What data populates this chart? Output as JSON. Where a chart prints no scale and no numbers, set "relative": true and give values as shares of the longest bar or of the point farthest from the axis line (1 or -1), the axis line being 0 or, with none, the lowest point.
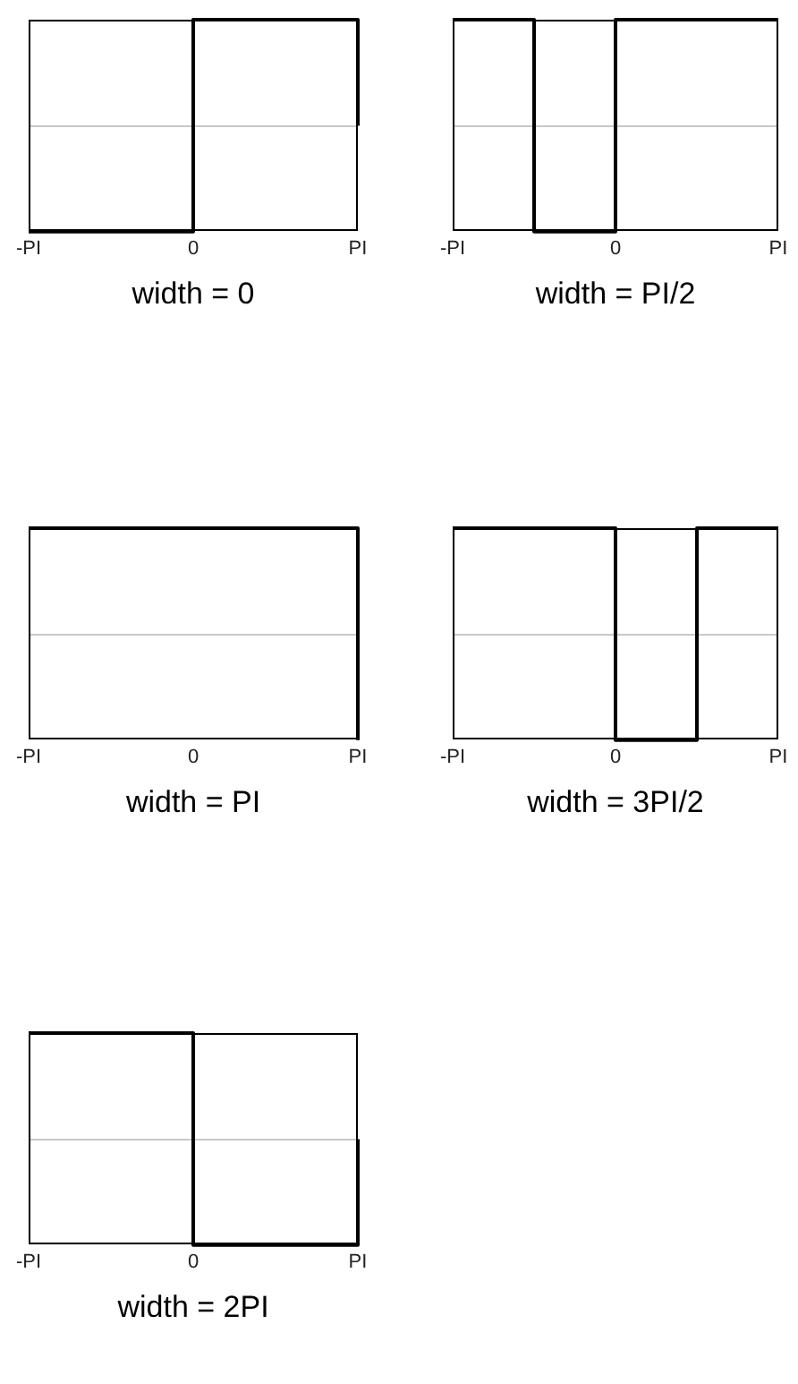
{
  "chart_data": [
    {
      "type": "step",
      "xlabel": "width = 0",
      "categories": [
        "-PI",
        null,
        "0",
        null,
        "PI"
      ],
      "values": [
        -1,
        -1,
        1,
        1,
        0
      ],
      "color": "#000000",
      "relative": true,
      "marker": "none",
      "ref_lines": [
        {
          "axis": "y",
          "value": 0,
          "color": "#c8c8c8"
        }
      ]
    },
    {
      "type": "step",
      "xlabel": "width = PI/2",
      "categories": [
        "-PI",
        null,
        "0",
        null,
        "PI"
      ],
      "values": [
        1,
        -1,
        1,
        1,
        1
      ],
      "color": "#000000",
      "relative": true,
      "marker": "none",
      "ref_lines": [
        {
          "axis": "y",
          "value": 0,
          "color": "#c8c8c8"
        }
      ]
    },
    {
      "type": "step",
      "xlabel": "width = PI",
      "categories": [
        "-PI",
        null,
        "0",
        null,
        "PI"
      ],
      "values": [
        1,
        1,
        1,
        1,
        -1
      ],
      "color": "#000000",
      "relative": true,
      "marker": "none",
      "ref_lines": [
        {
          "axis": "y",
          "value": 0,
          "color": "#c8c8c8"
        }
      ]
    },
    {
      "type": "step",
      "xlabel": "width = 3PI/2",
      "categories": [
        "-PI",
        null,
        "0",
        null,
        "PI"
      ],
      "values": [
        1,
        1,
        -1,
        1,
        1
      ],
      "color": "#000000",
      "relative": true,
      "marker": "none",
      "ref_lines": [
        {
          "axis": "y",
          "value": 0,
          "color": "#c8c8c8"
        }
      ]
    },
    {
      "type": "step",
      "xlabel": "width = 2PI",
      "categories": [
        "-PI",
        null,
        "0",
        null,
        "PI"
      ],
      "values": [
        1,
        1,
        -1,
        -1,
        0
      ],
      "color": "#000000",
      "relative": true,
      "marker": "none",
      "ref_lines": [
        {
          "axis": "y",
          "value": 0,
          "color": "#c8c8c8"
        }
      ]
    }
  ]
}
